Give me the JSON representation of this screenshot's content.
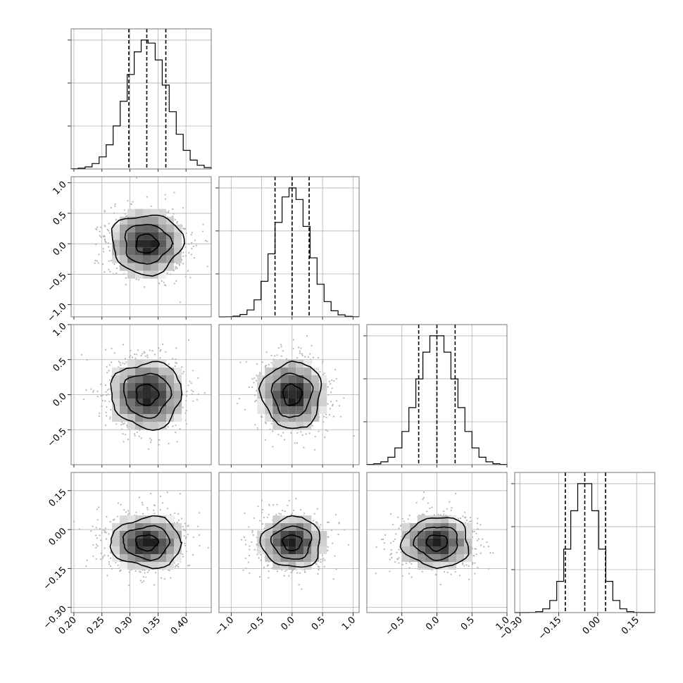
{
  "chart_data": {
    "type": "corner",
    "parameters": [
      {
        "range": [
          0.195,
          0.445
        ],
        "ticks": [
          0.2,
          0.25,
          0.3,
          0.35,
          0.4
        ],
        "tick_labels": [
          "0.20",
          "0.25",
          "0.30",
          "0.35",
          "0.40"
        ],
        "mean": 0.33,
        "sd": 0.036,
        "quantiles": [
          0.298,
          0.33,
          0.364
        ]
      },
      {
        "range": [
          -1.2,
          1.1
        ],
        "ticks": [
          -1.0,
          -0.5,
          0.0,
          0.5,
          1.0
        ],
        "tick_labels": [
          "−1.0",
          "−0.5",
          "0.0",
          "0.5",
          "1.0"
        ],
        "mean": 0.0,
        "sd": 0.28,
        "quantiles": [
          -0.28,
          0.0,
          0.28
        ]
      },
      {
        "range": [
          -1.0,
          1.0
        ],
        "ticks": [
          -0.5,
          0.0,
          0.5,
          1.0
        ],
        "tick_labels": [
          "−0.5",
          "0.0",
          "0.5",
          "1.0"
        ],
        "mean": 0.0,
        "sd": 0.27,
        "quantiles": [
          -0.26,
          0.0,
          0.26
        ]
      },
      {
        "range": [
          -0.32,
          0.22
        ],
        "ticks": [
          -0.3,
          -0.15,
          0.0,
          0.15
        ],
        "tick_labels": [
          "−0.30",
          "−0.15",
          "0.00",
          "0.15"
        ],
        "mean": -0.05,
        "sd": 0.055,
        "quantiles": [
          -0.125,
          -0.05,
          0.03
        ]
      }
    ],
    "histogram_bins": 20,
    "histogram_peak_fraction": 0.92,
    "histogram_y_gridlines": 3,
    "contour_levels_sigma": [
      0.55,
      1.15,
      1.75
    ],
    "scatter_points_per_panel": 900,
    "grid": true,
    "colors": {
      "frame": "#555555",
      "grid": "#b0b0b0",
      "line": "#000000",
      "scatter": "#b5b5b5",
      "density_dark": "#111111"
    }
  }
}
